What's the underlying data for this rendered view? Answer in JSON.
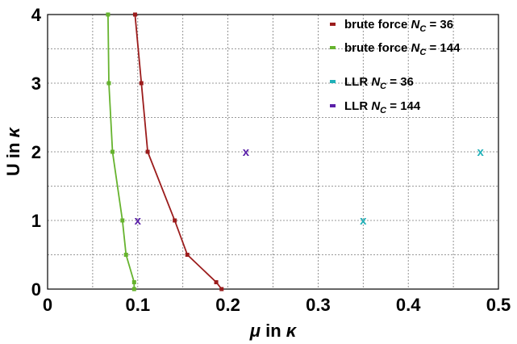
{
  "chart_data": {
    "type": "scatter",
    "xlabel": "μ in κ",
    "ylabel": "U in κ",
    "xlim": [
      0,
      0.5
    ],
    "ylim": [
      0,
      4
    ],
    "x_ticks": [
      0,
      0.1,
      0.2,
      0.3,
      0.4,
      0.5
    ],
    "x_tick_labels": [
      "0",
      "0.1",
      "0.2",
      "0.3",
      "0.4",
      "0.5"
    ],
    "y_ticks": [
      0,
      1,
      2,
      3,
      4
    ],
    "y_tick_labels": [
      "0",
      "1",
      "2",
      "3",
      "4"
    ],
    "grid": true,
    "legend_position": "top-right",
    "series": [
      {
        "name": "brute force N_C = 36",
        "label_parts": [
          "brute force ",
          "N",
          "C",
          " = 36"
        ],
        "kind": "line",
        "color": "#9b1c1c",
        "points": [
          [
            0.193,
            0
          ],
          [
            0.187,
            0.1
          ],
          [
            0.155,
            0.5
          ],
          [
            0.141,
            1
          ],
          [
            0.111,
            2
          ],
          [
            0.104,
            3
          ],
          [
            0.097,
            4
          ]
        ]
      },
      {
        "name": "brute force N_C = 144",
        "label_parts": [
          "brute force ",
          "N",
          "C",
          " = 144"
        ],
        "kind": "line",
        "color": "#66b32e",
        "points": [
          [
            0.096,
            0
          ],
          [
            0.096,
            0.1
          ],
          [
            0.087,
            0.5
          ],
          [
            0.083,
            1
          ],
          [
            0.072,
            2
          ],
          [
            0.068,
            3
          ],
          [
            0.067,
            4
          ]
        ]
      },
      {
        "name": "LLR N_C = 36",
        "label_parts": [
          "LLR ",
          "N",
          "C",
          " = 36"
        ],
        "kind": "marker",
        "color": "#1fb0b8",
        "points": [
          [
            0.35,
            1
          ],
          [
            0.48,
            2
          ]
        ]
      },
      {
        "name": "LLR N_C = 144",
        "label_parts": [
          "LLR ",
          "N",
          "C",
          " = 144"
        ],
        "kind": "marker",
        "color": "#5a1fa8",
        "points": [
          [
            0.1,
            1
          ],
          [
            0.22,
            2
          ]
        ]
      }
    ]
  }
}
